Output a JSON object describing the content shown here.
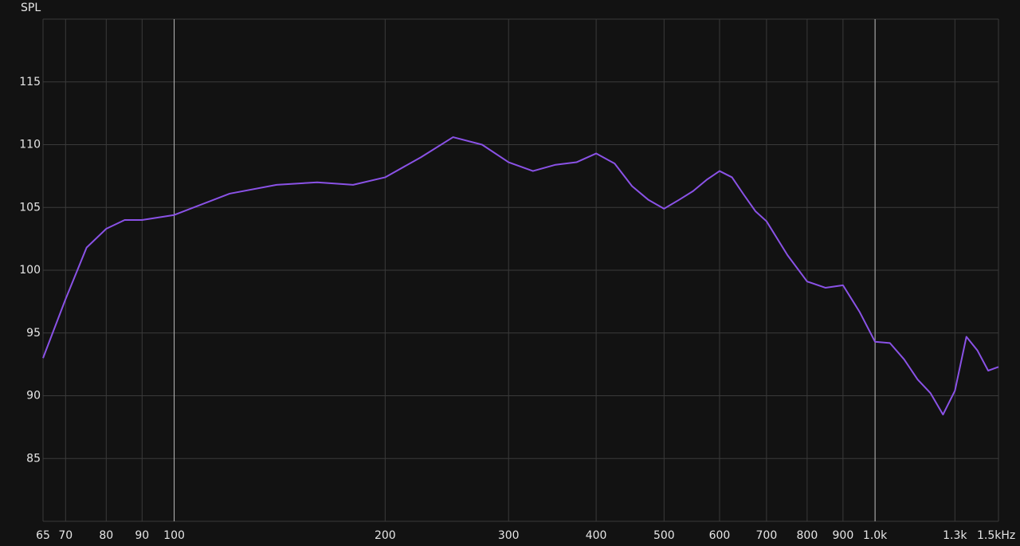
{
  "chart_data": {
    "type": "line",
    "y_label": "SPL",
    "xscale": "log",
    "grid": true,
    "xlim": [
      65,
      1500
    ],
    "ylim": [
      80,
      120
    ],
    "xticks": [
      65,
      70,
      80,
      90,
      100,
      200,
      300,
      400,
      500,
      600,
      700,
      800,
      900,
      {
        "value": 1000,
        "label": "1.0k"
      },
      {
        "value": 1300,
        "label": "1.3k"
      },
      {
        "value": 1500,
        "label": "1.5kHz"
      }
    ],
    "highlight_x": [
      100,
      1000
    ],
    "yticks": [
      85,
      90,
      95,
      100,
      105,
      110,
      115
    ],
    "x": [
      65,
      70,
      75,
      80,
      85,
      90,
      100,
      120,
      140,
      160,
      180,
      200,
      225,
      250,
      275,
      300,
      325,
      350,
      375,
      400,
      425,
      450,
      475,
      500,
      525,
      550,
      575,
      600,
      625,
      650,
      675,
      700,
      750,
      800,
      850,
      900,
      950,
      1000,
      1050,
      1100,
      1150,
      1200,
      1250,
      1300,
      1350,
      1400,
      1450,
      1500
    ],
    "series": [
      {
        "color": "#8a52e6",
        "values": [
          93.0,
          97.7,
          101.8,
          103.3,
          104.0,
          104.0,
          104.4,
          106.1,
          106.8,
          107.0,
          106.8,
          107.4,
          109.0,
          110.6,
          110.0,
          108.6,
          107.9,
          108.4,
          108.6,
          109.3,
          108.5,
          106.7,
          105.6,
          104.9,
          105.6,
          106.3,
          107.2,
          107.9,
          107.4,
          106.0,
          104.7,
          103.9,
          101.2,
          99.1,
          98.6,
          98.8,
          96.7,
          94.3,
          94.2,
          92.9,
          91.3,
          90.2,
          88.5,
          90.4,
          94.7,
          93.6,
          92.0,
          92.3
        ]
      }
    ]
  }
}
